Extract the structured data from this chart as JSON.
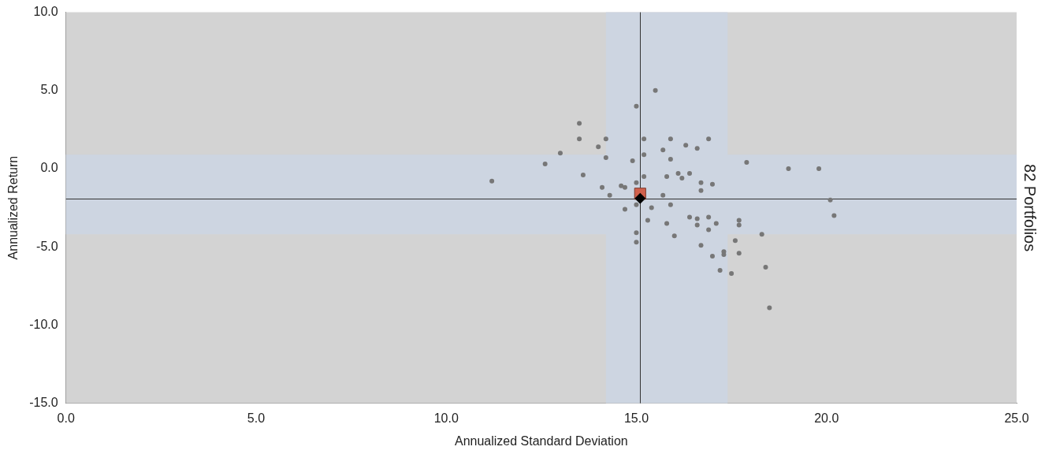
{
  "chart_data": {
    "type": "scatter",
    "xlabel": "Annualized Standard Deviation",
    "ylabel": "Annualized Return",
    "y2label": "82 Portfolios",
    "xlim": [
      0,
      25
    ],
    "xticks": [
      {
        "value": 0,
        "label": "0.0"
      },
      {
        "value": 5,
        "label": "5.0"
      },
      {
        "value": 10,
        "label": "10.0"
      },
      {
        "value": 15,
        "label": "15.0"
      },
      {
        "value": 20,
        "label": "20.0"
      },
      {
        "value": 25,
        "label": "25.0"
      }
    ],
    "ylim": [
      -15,
      10
    ],
    "yticks": [
      {
        "value": -15,
        "label": "-15.0"
      },
      {
        "value": -10,
        "label": "-10.0"
      },
      {
        "value": -5,
        "label": "-5.0"
      },
      {
        "value": 0,
        "label": "0.0"
      },
      {
        "value": 5,
        "label": "5.0"
      },
      {
        "value": 10,
        "label": "10.0"
      }
    ],
    "grid": false,
    "legend": false,
    "marker": "circle",
    "bands": [
      {
        "axis": "x",
        "from": 14.2,
        "to": 17.4,
        "color": "#cdd5e1"
      },
      {
        "axis": "y",
        "from": -4.2,
        "to": 0.9,
        "color": "#cdd5e1"
      }
    ],
    "ref_lines": [
      {
        "axis": "x",
        "value": 15.1,
        "color": "#333333"
      },
      {
        "axis": "y",
        "value": -1.9,
        "color": "#333333"
      }
    ],
    "series": [
      {
        "color": "#777777",
        "x": [
          11.2,
          12.6,
          13.0,
          13.5,
          13.5,
          14.0,
          14.2,
          14.2,
          13.6,
          14.1,
          14.3,
          14.6,
          14.7,
          14.9,
          15.0,
          15.0,
          15.5,
          15.2,
          15.2,
          15.2,
          15.9,
          15.7,
          15.9,
          15.8,
          15.7,
          15.9,
          15.4,
          15.3,
          15.8,
          16.0,
          15.0,
          15.0,
          14.7,
          15.0,
          16.9,
          16.3,
          16.6,
          17.9,
          19.0,
          19.8,
          16.2,
          16.7,
          17.0,
          16.7,
          20.1,
          20.2,
          16.9,
          16.6,
          17.1,
          17.7,
          17.7,
          16.9,
          18.3,
          17.6,
          16.7,
          17.3,
          17.3,
          17.7,
          17.0,
          18.4,
          17.2,
          17.5,
          18.5,
          16.1,
          16.4,
          16.4,
          16.6
        ],
        "values": [
          -0.8,
          0.3,
          1.0,
          2.9,
          1.9,
          1.4,
          1.9,
          0.7,
          -0.4,
          -1.2,
          -1.7,
          -1.1,
          -1.2,
          0.5,
          -0.9,
          4.0,
          5.0,
          1.9,
          0.9,
          -0.5,
          1.9,
          1.2,
          0.6,
          -0.5,
          -1.7,
          -2.3,
          -2.5,
          -3.3,
          -3.5,
          -4.3,
          -4.1,
          -4.7,
          -2.6,
          -2.3,
          1.9,
          1.5,
          1.3,
          0.4,
          0.0,
          0.0,
          -0.6,
          -0.9,
          -1.0,
          -1.4,
          -2.0,
          -3.0,
          -3.1,
          -3.6,
          -3.5,
          -3.3,
          -3.6,
          -3.9,
          -4.2,
          -4.6,
          -4.9,
          -5.3,
          -5.5,
          -5.4,
          -5.6,
          -6.3,
          -6.5,
          -6.7,
          -8.9,
          -0.3,
          -0.3,
          -3.1,
          -3.2
        ]
      },
      {
        "color": "#d0604c",
        "marker": "square",
        "x": [
          15.1
        ],
        "values": [
          -1.6
        ]
      },
      {
        "color": "#000000",
        "marker": "diamond",
        "x": [
          15.1
        ],
        "values": [
          -1.9
        ]
      }
    ]
  }
}
